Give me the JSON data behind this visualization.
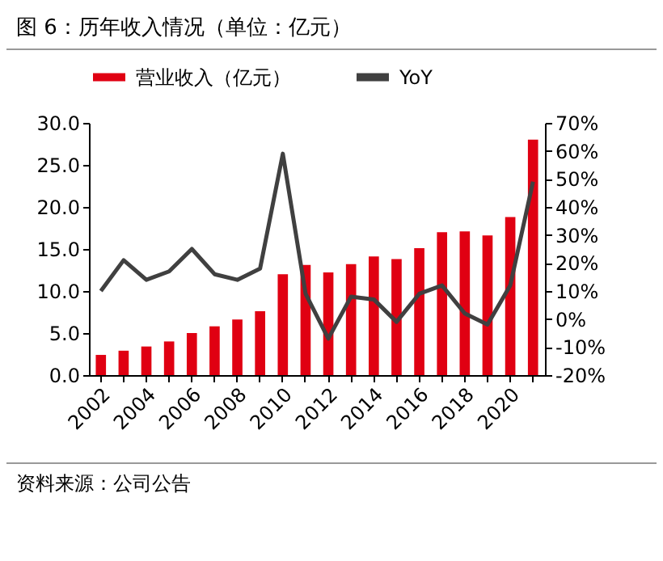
{
  "chart_data": {
    "type": "bar",
    "title": "图 6：历年收入情况（单位：亿元）",
    "categories": [
      "2002",
      null,
      "2004",
      null,
      "2006",
      null,
      "2008",
      null,
      "2010",
      null,
      "2012",
      null,
      "2014",
      null,
      "2016",
      null,
      "2018",
      null,
      "2020",
      null
    ],
    "series": [
      {
        "name": "营业收入（亿元）",
        "color": "#e00012",
        "values": [
          2.4,
          2.9,
          3.4,
          4.0,
          5.0,
          5.8,
          6.6,
          7.6,
          12.0,
          13.1,
          12.2,
          13.2,
          14.1,
          13.8,
          15.1,
          17.0,
          17.1,
          16.6,
          18.8,
          28.0
        ]
      },
      {
        "name": "YoY",
        "type": "line",
        "axis": "y2",
        "color": "#404040",
        "values": [
          10,
          21,
          14,
          17,
          25,
          16,
          14,
          18,
          59,
          9,
          -7,
          8,
          7,
          -1,
          9,
          12,
          2,
          -2,
          12,
          49
        ]
      }
    ],
    "ylim": [
      0,
      30
    ],
    "yticks": [
      {
        "value": 0,
        "label": "0.0"
      },
      {
        "value": 5,
        "label": "5.0"
      },
      {
        "value": 10,
        "label": "10.0"
      },
      {
        "value": 15,
        "label": "15.0"
      },
      {
        "value": 20,
        "label": "20.0"
      },
      {
        "value": 25,
        "label": "25.0"
      },
      {
        "value": 30,
        "label": "30.0"
      }
    ],
    "y2lim": [
      -20,
      70
    ],
    "y2ticks": [
      {
        "value": -20,
        "label": "-20%"
      },
      {
        "value": -10,
        "label": "-10%"
      },
      {
        "value": 0,
        "label": "0%"
      },
      {
        "value": 10,
        "label": "10%"
      },
      {
        "value": 20,
        "label": "20%"
      },
      {
        "value": 30,
        "label": "30%"
      },
      {
        "value": 40,
        "label": "40%"
      },
      {
        "value": 50,
        "label": "50%"
      },
      {
        "value": 60,
        "label": "60%"
      },
      {
        "value": 70,
        "label": "70%"
      }
    ],
    "legend": "top",
    "grid": false,
    "annotations": [
      "资料来源：公司公告"
    ]
  }
}
